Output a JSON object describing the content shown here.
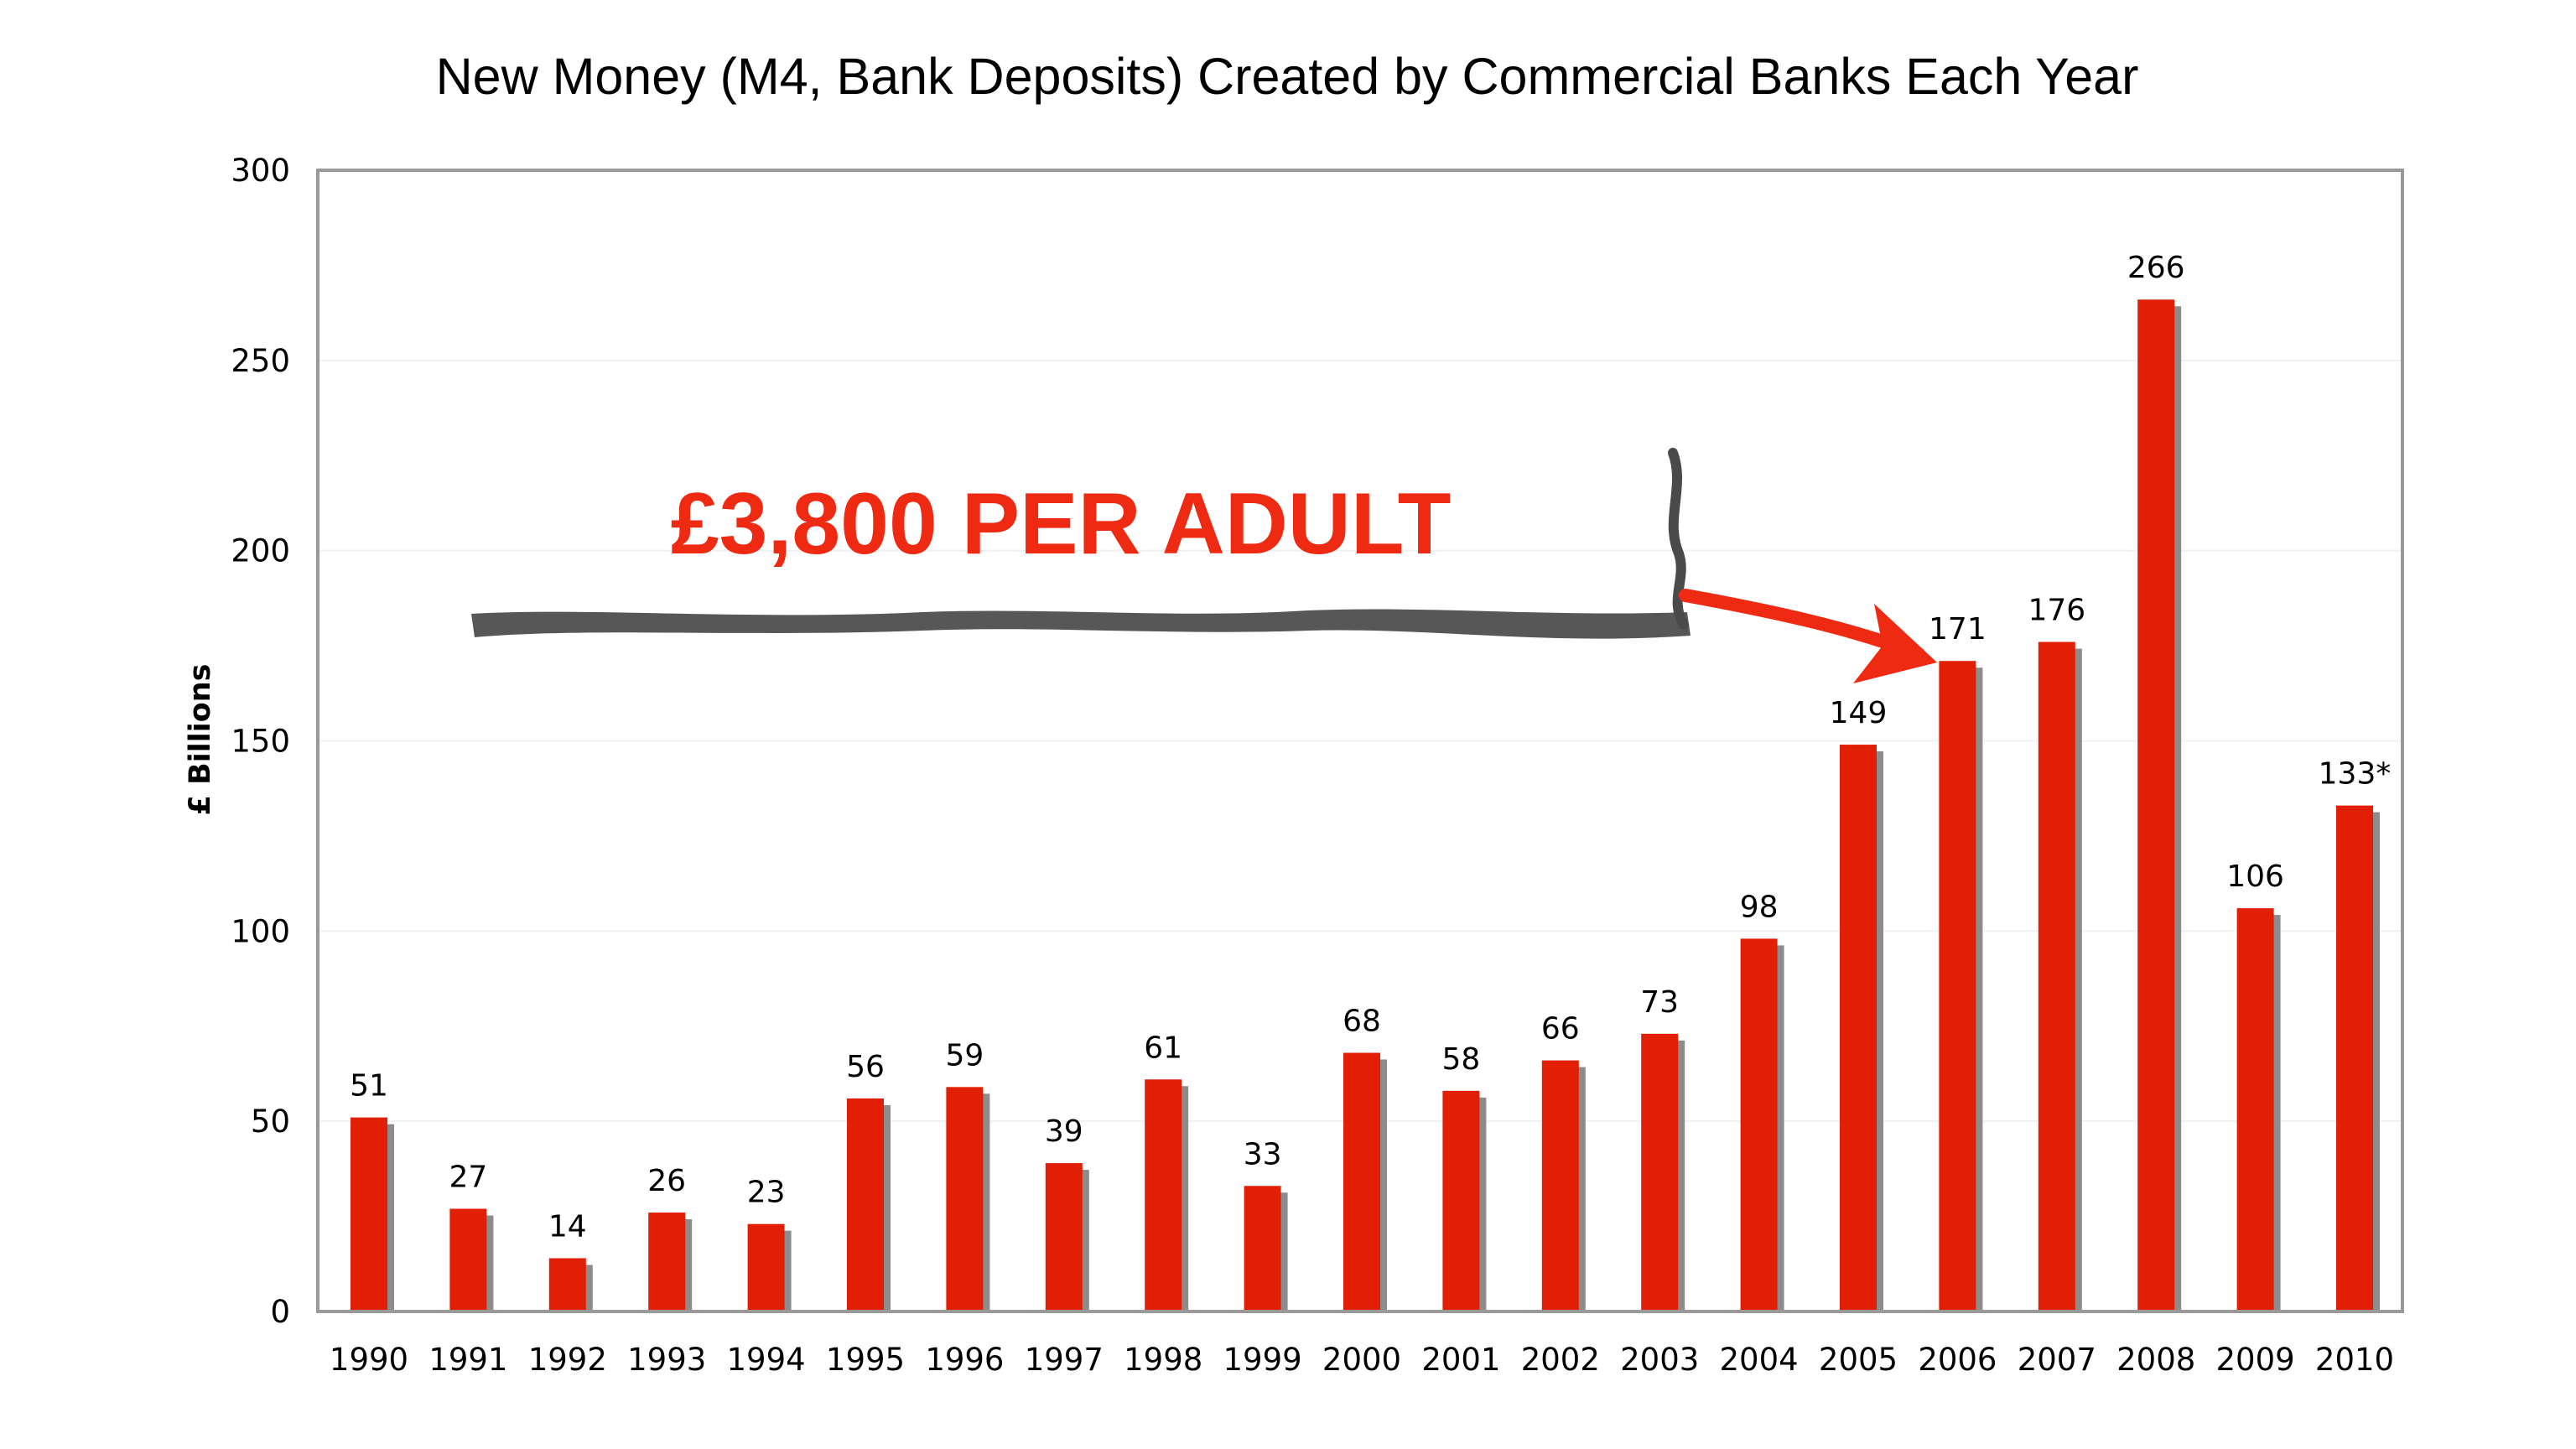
{
  "chart_data": {
    "type": "bar",
    "title": "New Money (M4, Bank Deposits) Created by Commercial Banks Each Year",
    "ylabel": "£ Billions",
    "xlabel": "",
    "ylim": [
      0,
      300
    ],
    "yticks": [
      0,
      50,
      100,
      150,
      200,
      250,
      300
    ],
    "grid": true,
    "categories": [
      "1990",
      "1991",
      "1992",
      "1993",
      "1994",
      "1995",
      "1996",
      "1997",
      "1998",
      "1999",
      "2000",
      "2001",
      "2002",
      "2003",
      "2004",
      "2005",
      "2006",
      "2007",
      "2008",
      "2009",
      "2010"
    ],
    "values": [
      51,
      27,
      14,
      26,
      23,
      56,
      59,
      39,
      61,
      33,
      68,
      58,
      66,
      73,
      98,
      149,
      171,
      176,
      266,
      106,
      133
    ],
    "data_labels": [
      "51",
      "27",
      "14",
      "26",
      "23",
      "56",
      "59",
      "39",
      "61",
      "33",
      "68",
      "58",
      "66",
      "73",
      "98",
      "149",
      "171",
      "176",
      "266",
      "106",
      "133*"
    ],
    "bar_color": "#e11f05",
    "shadow_color": "#8c8c8c",
    "annotation": {
      "text": "£3,800 PER ADULT",
      "color": "#ef2a12",
      "from_category": "1990",
      "to_category": "2006"
    }
  }
}
